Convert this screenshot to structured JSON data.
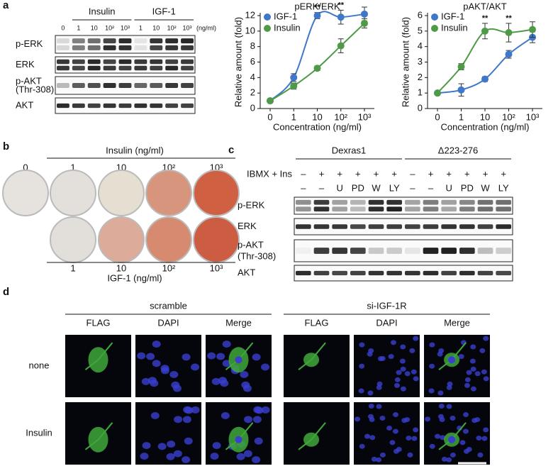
{
  "panel_labels": [
    "a",
    "b",
    "c",
    "d"
  ],
  "blot_a": {
    "groups": [
      "Insulin",
      "IGF-1"
    ],
    "lanes": [
      "0",
      "1",
      "10",
      "10²",
      "10³",
      "1",
      "10",
      "10²",
      "10³"
    ],
    "unit": "(ng/ml)",
    "rows": [
      "p-ERK",
      "ERK",
      "p-AKT",
      "AKT"
    ],
    "site": "(Thr-308)"
  },
  "chart_data": [
    {
      "type": "line",
      "title": "pERK/ERK",
      "x_label": "Concentration (ng/ml)",
      "y_label": "Relative amount (fold)",
      "categories": [
        "0",
        "1",
        "10",
        "10²",
        "10³"
      ],
      "ylim": [
        0,
        12
      ],
      "yticks": [
        0,
        2,
        4,
        6,
        8,
        10,
        12
      ],
      "legend": "upper left",
      "series": [
        {
          "name": "IGF-1",
          "color": "#3f78c9",
          "values": [
            1,
            4,
            12,
            11.8,
            12.2
          ],
          "errors": [
            0.2,
            0.5,
            0.4,
            0.9,
            0.9
          ]
        },
        {
          "name": "Insulin",
          "color": "#4f9a47",
          "values": [
            1,
            2.9,
            5.2,
            8.1,
            11
          ],
          "errors": [
            0.2,
            0.4,
            0.3,
            0.9,
            0.6
          ]
        }
      ],
      "annotations": [
        {
          "text": "**",
          "category": "10"
        },
        {
          "text": "**",
          "category": "10²"
        }
      ]
    },
    {
      "type": "line",
      "title": "pAKT/AKT",
      "x_label": "Concentration (ng/ml)",
      "y_label": "Relative amount (fold)",
      "categories": [
        "0",
        "1",
        "10",
        "10²",
        "10³"
      ],
      "ylim": [
        0,
        6
      ],
      "yticks": [
        0,
        1,
        2,
        3,
        4,
        5,
        6
      ],
      "legend": "upper left",
      "series": [
        {
          "name": "IGF-1",
          "color": "#3f78c9",
          "values": [
            1,
            1.2,
            1.9,
            3.5,
            4.6
          ],
          "errors": [
            0.1,
            0.4,
            0.15,
            0.25,
            0.35
          ]
        },
        {
          "name": "Insulin",
          "color": "#4f9a47",
          "values": [
            1,
            2.7,
            5,
            4.9,
            5.1
          ],
          "errors": [
            0.1,
            0.2,
            0.5,
            0.6,
            0.5
          ]
        }
      ],
      "annotations": [
        {
          "text": "**",
          "category": "10"
        },
        {
          "text": "**",
          "category": "10²"
        }
      ]
    }
  ],
  "plates_b": {
    "top_title": "Insulin (ng/ml)",
    "top_lanes": [
      "0",
      "1",
      "10",
      "10²",
      "10³"
    ],
    "bottom_lanes": [
      "1",
      "10",
      "10²",
      "10³"
    ],
    "bottom_title": "IGF-1 (ng/ml)"
  },
  "blot_c": {
    "groups": [
      "Dexras1",
      "Δ223-276"
    ],
    "treatment": "IBMX + Ins",
    "row1": [
      "–",
      "+",
      "+",
      "+",
      "+",
      "+",
      "–",
      "+",
      "+",
      "+",
      "+",
      "+"
    ],
    "row2": [
      "–",
      "–",
      "U",
      "PD",
      "W",
      "LY",
      "–",
      "–",
      "U",
      "PD",
      "W",
      "LY"
    ],
    "rows": [
      "p-ERK",
      "ERK",
      "p-AKT",
      "AKT"
    ],
    "site": "(Thr-308)"
  },
  "images_d": {
    "groups": [
      "scramble",
      "si-IGF-1R"
    ],
    "columns": [
      "FLAG",
      "DAPI",
      "Merge",
      "FLAG",
      "DAPI",
      "Merge"
    ],
    "rows": [
      "none",
      "Insulin"
    ]
  }
}
